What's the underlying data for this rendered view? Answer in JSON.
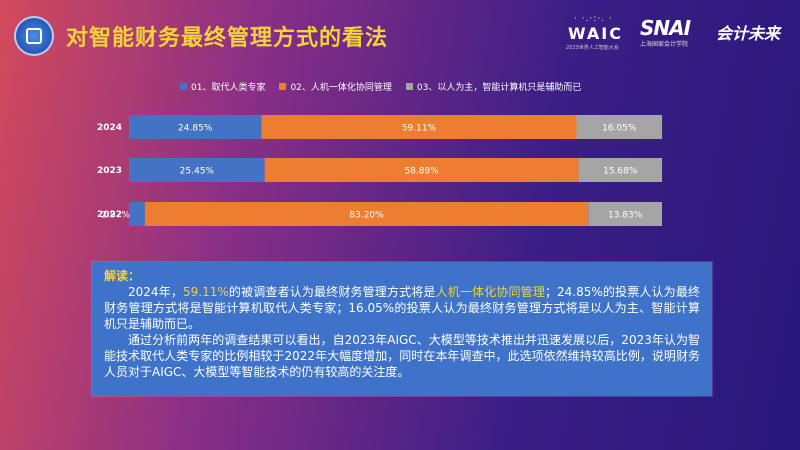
{
  "title": "对智能财务最终管理方式的看法",
  "logos": {
    "waic_dots": "· ·.·:·. ·",
    "waic": "WAIC",
    "waic_sub": "2023世界人工智能大会",
    "snai": "SNAI",
    "snai_sub": "上海国家会计学院",
    "kj": "会计未来"
  },
  "colors": {
    "s1": "#4472c4",
    "s2": "#ed7d31",
    "s3": "#a5a5a5",
    "title": "#f3d23a"
  },
  "chart_data": {
    "type": "bar",
    "orientation": "horizontal",
    "stacked": "percent",
    "categories": [
      "2024",
      "2023",
      "2022"
    ],
    "series": [
      {
        "name": "01、取代人类专家",
        "values": [
          24.85,
          25.45,
          2.97
        ],
        "labels": [
          "24.85%",
          "25.45%",
          "2.97%"
        ]
      },
      {
        "name": "02、人机一体化协同管理",
        "values": [
          59.11,
          58.88,
          83.2
        ],
        "labels": [
          "59.11%",
          "58.88%",
          "83.20%"
        ]
      },
      {
        "name": "03、以人为主，智能计算机只是辅助而已",
        "values": [
          16.05,
          15.68,
          13.83
        ],
        "labels": [
          "16.05%",
          "15.68%",
          "13.83%"
        ]
      }
    ],
    "xlim": [
      0,
      100
    ],
    "legend": "top",
    "grid": false
  },
  "explain": {
    "head": "解读：",
    "p1_a": "2024年，",
    "p1_hl1": "59.11%",
    "p1_b": "的被调查者认为最终财务管理方式将是",
    "p1_hl2": "人机一体化协同管理",
    "p1_c": "；24.85%的投票人认为最终财务管理方式将是智能计算机取代人类专家；16.05%的投票人认为最终财务管理方式将是以人为主、智能计算机只是辅助而已。",
    "p2": "通过分析前两年的调查结果可以看出，自2023年AIGC、大模型等技术推出并迅速发展以后，2023年认为智能技术取代人类专家的比例相较于2022年大幅度增加，同时在本年调查中，此选项依然维持较高比例，说明财务人员对于AIGC、大模型等智能技术的仍有较高的关注度。"
  }
}
